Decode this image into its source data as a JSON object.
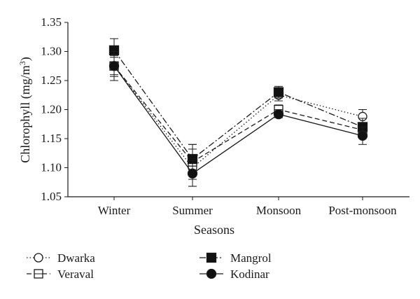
{
  "chart_data": {
    "type": "line",
    "xlabel": "Seasons",
    "ylabel_main": "Chlorophyll (mg/m",
    "ylabel_sup": "3",
    "ylabel_close": ")",
    "categories": [
      "Winter",
      "Summer",
      "Monsoon",
      "Post-monsoon"
    ],
    "ylim": [
      1.05,
      1.35
    ],
    "yticks": [
      "1.05",
      "1.10",
      "1.15",
      "1.20",
      "1.25",
      "1.30",
      "1.35"
    ],
    "grid": false,
    "legend_position": "bottom",
    "series": [
      {
        "name": "Dwarka",
        "marker": "open-circle",
        "dash": "dotted",
        "values": [
          1.275,
          1.1,
          1.225,
          1.188
        ],
        "errors": [
          0.015,
          0.032,
          0.01,
          0.012
        ]
      },
      {
        "name": "Veraval",
        "marker": "open-square",
        "dash": "dashed",
        "values": [
          1.275,
          1.11,
          1.2,
          1.165
        ],
        "errors": [
          0.018,
          0.03,
          0.008,
          0.01
        ]
      },
      {
        "name": "Mangrol",
        "marker": "filled-square",
        "dash": "dashdot",
        "values": [
          1.302,
          1.115,
          1.23,
          1.17
        ],
        "errors": [
          0.02,
          0.025,
          0.01,
          0.015
        ]
      },
      {
        "name": "Kodinar",
        "marker": "filled-circle",
        "dash": "solid",
        "values": [
          1.275,
          1.09,
          1.192,
          1.155
        ],
        "errors": [
          0.025,
          0.022,
          0.006,
          0.015
        ]
      }
    ]
  }
}
